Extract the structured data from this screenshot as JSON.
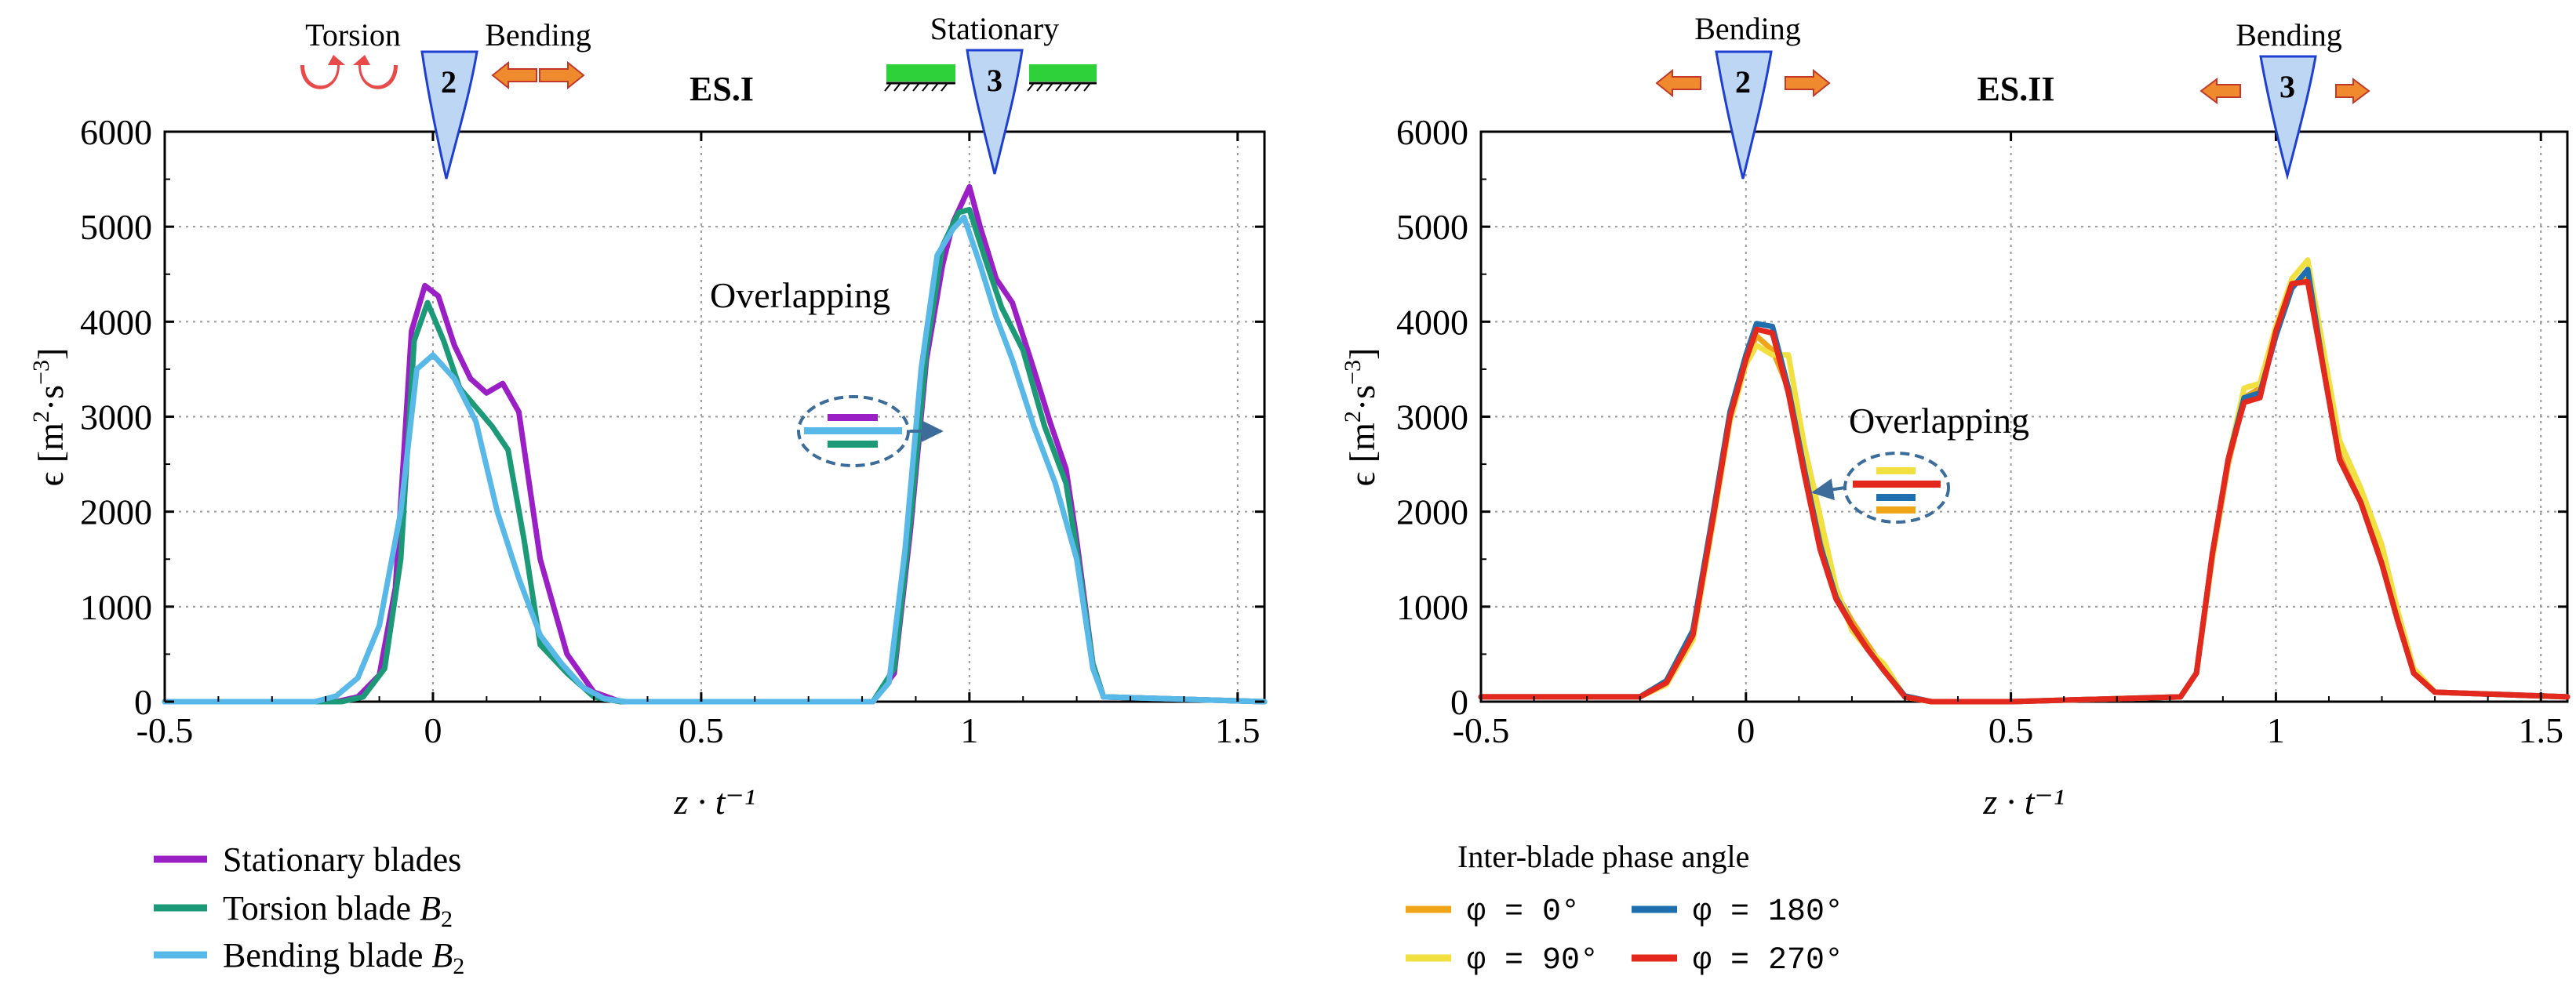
{
  "colors": {
    "stationary": "#9a1fc4",
    "torsion": "#1c9a78",
    "bending": "#58b9e8",
    "phi0": "#f0a418",
    "phi90": "#f2e041",
    "phi180": "#1f6eae",
    "phi270": "#e3281e",
    "blade_fill": "#bcd6f4",
    "blade_stroke": "#1f3fd0",
    "arrow_fill": "#f08a2e",
    "torsion_icon": "#e84a4a",
    "stationary_bar": "#2fd13a"
  },
  "chart_data": [
    {
      "type": "line",
      "title": "ES.I",
      "xlabel": "z · t⁻¹",
      "ylabel": "ϵ [m²·s⁻³]",
      "ylabel_main": "ϵ [m",
      "ylabel_exp1": "2",
      "ylabel_mid": "·s",
      "ylabel_exp2": "−3",
      "ylabel_end": "]",
      "xlim": [
        -0.5,
        1.55
      ],
      "ylim": [
        0,
        6000
      ],
      "xticks": [
        -0.5,
        0,
        0.5,
        1,
        1.5
      ],
      "xtick_labels": [
        "-0.5",
        "0",
        "0.5",
        "1",
        "1.5"
      ],
      "yticks": [
        0,
        1000,
        2000,
        3000,
        4000,
        5000,
        6000
      ],
      "ytick_labels": [
        "0",
        "1000",
        "2000",
        "3000",
        "4000",
        "5000",
        "6000"
      ],
      "grid": true,
      "annotations": {
        "overlapping": "Overlapping",
        "blade_2": "2",
        "blade_3": "3",
        "torsion": "Torsion",
        "bending": "Bending",
        "stationary": "Stationary"
      },
      "series": [
        {
          "name": "Stationary blades",
          "color_key": "stationary",
          "x": [
            -0.5,
            -0.18,
            -0.14,
            -0.1,
            -0.07,
            -0.04,
            -0.015,
            0.01,
            0.04,
            0.07,
            0.1,
            0.13,
            0.16,
            0.2,
            0.25,
            0.3,
            0.35,
            0.5,
            0.82,
            0.86,
            0.89,
            0.92,
            0.95,
            0.97,
            1.0,
            1.02,
            1.05,
            1.08,
            1.12,
            1.15,
            1.18,
            1.2,
            1.23,
            1.25,
            1.55
          ],
          "values": [
            0,
            0,
            50,
            280,
            1200,
            3900,
            4380,
            4270,
            3750,
            3400,
            3250,
            3350,
            3050,
            1500,
            500,
            100,
            0,
            0,
            0,
            300,
            1800,
            3600,
            4600,
            5050,
            5420,
            5000,
            4450,
            4200,
            3500,
            2950,
            2450,
            1700,
            400,
            50,
            0
          ]
        },
        {
          "name": "Torsion blade B₂",
          "color_key": "torsion",
          "x": [
            -0.5,
            -0.17,
            -0.13,
            -0.09,
            -0.06,
            -0.035,
            -0.01,
            0.02,
            0.05,
            0.08,
            0.11,
            0.14,
            0.17,
            0.2,
            0.25,
            0.3,
            0.35,
            0.5,
            0.82,
            0.86,
            0.89,
            0.92,
            0.95,
            0.98,
            1.0,
            1.03,
            1.06,
            1.1,
            1.14,
            1.18,
            1.2,
            1.23,
            1.25,
            1.55
          ],
          "values": [
            0,
            0,
            50,
            350,
            1500,
            3800,
            4200,
            3800,
            3300,
            3100,
            2900,
            2650,
            1700,
            600,
            300,
            50,
            0,
            0,
            0,
            350,
            1900,
            3700,
            4800,
            5150,
            5180,
            4650,
            4150,
            3700,
            2900,
            2300,
            1600,
            400,
            50,
            0
          ]
        },
        {
          "name": "Bending blade B₂",
          "color_key": "bending",
          "x": [
            -0.5,
            -0.22,
            -0.18,
            -0.14,
            -0.1,
            -0.06,
            -0.03,
            0.0,
            0.04,
            0.08,
            0.12,
            0.16,
            0.2,
            0.24,
            0.28,
            0.32,
            0.36,
            0.5,
            0.82,
            0.85,
            0.88,
            0.91,
            0.94,
            0.97,
            0.99,
            1.02,
            1.05,
            1.08,
            1.12,
            1.16,
            1.2,
            1.23,
            1.25,
            1.55
          ],
          "values": [
            0,
            0,
            60,
            250,
            800,
            2000,
            3500,
            3650,
            3400,
            2950,
            2000,
            1300,
            700,
            400,
            150,
            30,
            0,
            0,
            0,
            200,
            1600,
            3500,
            4700,
            4980,
            5100,
            4600,
            4050,
            3600,
            2900,
            2300,
            1500,
            350,
            50,
            0
          ]
        }
      ],
      "legend": {
        "position": "bottom-left",
        "entries": [
          {
            "label": "Stationary blades",
            "color_key": "stationary"
          },
          {
            "label_main": "Torsion blade ",
            "label_var": "B",
            "label_sub": "2",
            "color_key": "torsion"
          },
          {
            "label_main": "Bending blade ",
            "label_var": "B",
            "label_sub": "2",
            "color_key": "bending"
          }
        ]
      }
    },
    {
      "type": "line",
      "title": "ES.II",
      "xlabel": "z · t⁻¹",
      "ylabel": "ϵ [m²·s⁻³]",
      "ylabel_main": "ϵ [m",
      "ylabel_exp1": "2",
      "ylabel_mid": "·s",
      "ylabel_exp2": "−3",
      "ylabel_end": "]",
      "xlim": [
        -0.5,
        1.55
      ],
      "ylim": [
        0,
        6000
      ],
      "xticks": [
        -0.5,
        0,
        0.5,
        1,
        1.5
      ],
      "xtick_labels": [
        "-0.5",
        "0",
        "0.5",
        "1",
        "1.5"
      ],
      "yticks": [
        0,
        1000,
        2000,
        3000,
        4000,
        5000,
        6000
      ],
      "ytick_labels": [
        "0",
        "1000",
        "2000",
        "3000",
        "4000",
        "5000",
        "6000"
      ],
      "grid": true,
      "annotations": {
        "overlapping": "Overlapping",
        "blade_2": "2",
        "blade_3": "3",
        "bending_left": "Bending",
        "bending_right": "Bending"
      },
      "series": [
        {
          "name": "φ = 0°",
          "color_key": "phi0",
          "x": [
            -0.5,
            -0.2,
            -0.15,
            -0.1,
            -0.06,
            -0.03,
            0.0,
            0.02,
            0.05,
            0.08,
            0.11,
            0.14,
            0.17,
            0.2,
            0.23,
            0.26,
            0.3,
            0.35,
            0.5,
            0.82,
            0.85,
            0.88,
            0.91,
            0.94,
            0.97,
            1.0,
            1.03,
            1.06,
            1.09,
            1.12,
            1.16,
            1.2,
            1.23,
            1.26,
            1.3,
            1.55
          ],
          "values": [
            50,
            50,
            200,
            700,
            2000,
            3000,
            3600,
            3850,
            3700,
            3300,
            2500,
            1700,
            1150,
            850,
            600,
            350,
            50,
            0,
            0,
            50,
            300,
            1500,
            2500,
            3200,
            3300,
            3900,
            4400,
            4450,
            3600,
            2600,
            2100,
            1500,
            900,
            300,
            100,
            50
          ]
        },
        {
          "name": "φ = 90°",
          "color_key": "phi90",
          "x": [
            -0.5,
            -0.2,
            -0.15,
            -0.1,
            -0.06,
            -0.03,
            0.0,
            0.02,
            0.05,
            0.08,
            0.11,
            0.14,
            0.17,
            0.2,
            0.23,
            0.26,
            0.3,
            0.35,
            0.5,
            0.82,
            0.85,
            0.88,
            0.91,
            0.94,
            0.97,
            1.0,
            1.03,
            1.06,
            1.09,
            1.12,
            1.16,
            1.2,
            1.23,
            1.26,
            1.3,
            1.55
          ],
          "values": [
            50,
            50,
            180,
            650,
            1950,
            2950,
            3550,
            3750,
            3650,
            3650,
            2700,
            1950,
            1200,
            750,
            550,
            400,
            50,
            0,
            0,
            50,
            300,
            1500,
            2550,
            3300,
            3350,
            3950,
            4450,
            4650,
            3700,
            2750,
            2250,
            1650,
            950,
            350,
            100,
            50
          ]
        },
        {
          "name": "φ = 180°",
          "color_key": "phi180",
          "x": [
            -0.5,
            -0.2,
            -0.15,
            -0.1,
            -0.06,
            -0.03,
            0.0,
            0.02,
            0.05,
            0.08,
            0.11,
            0.14,
            0.17,
            0.2,
            0.23,
            0.26,
            0.3,
            0.35,
            0.5,
            0.82,
            0.85,
            0.88,
            0.91,
            0.94,
            0.97,
            1.0,
            1.03,
            1.06,
            1.09,
            1.12,
            1.16,
            1.2,
            1.23,
            1.26,
            1.3,
            1.55
          ],
          "values": [
            50,
            50,
            220,
            750,
            2050,
            3050,
            3650,
            3980,
            3950,
            3300,
            2450,
            1650,
            1100,
            800,
            550,
            330,
            60,
            0,
            0,
            50,
            300,
            1550,
            2550,
            3200,
            3250,
            3850,
            4350,
            4550,
            3500,
            2550,
            2100,
            1450,
            850,
            300,
            100,
            50
          ]
        },
        {
          "name": "φ = 270°",
          "color_key": "phi270",
          "x": [
            -0.5,
            -0.2,
            -0.15,
            -0.1,
            -0.06,
            -0.03,
            0.0,
            0.02,
            0.05,
            0.08,
            0.11,
            0.14,
            0.17,
            0.2,
            0.23,
            0.26,
            0.3,
            0.35,
            0.5,
            0.82,
            0.85,
            0.88,
            0.91,
            0.94,
            0.97,
            1.0,
            1.03,
            1.06,
            1.09,
            1.12,
            1.16,
            1.2,
            1.23,
            1.26,
            1.3,
            1.55
          ],
          "values": [
            50,
            50,
            200,
            700,
            2000,
            3000,
            3600,
            3920,
            3880,
            3250,
            2400,
            1600,
            1080,
            800,
            550,
            330,
            50,
            0,
            0,
            50,
            300,
            1550,
            2550,
            3150,
            3200,
            3900,
            4400,
            4420,
            3500,
            2550,
            2100,
            1450,
            850,
            300,
            100,
            50
          ]
        }
      ],
      "legend": {
        "position": "bottom-left",
        "title": "Inter-blade phase angle",
        "entries": [
          {
            "label": "φ = 0°",
            "color_key": "phi0"
          },
          {
            "label": "φ = 180°",
            "color_key": "phi180"
          },
          {
            "label": "φ = 90°",
            "color_key": "phi90"
          },
          {
            "label": "φ = 270°",
            "color_key": "phi270"
          }
        ]
      }
    }
  ]
}
